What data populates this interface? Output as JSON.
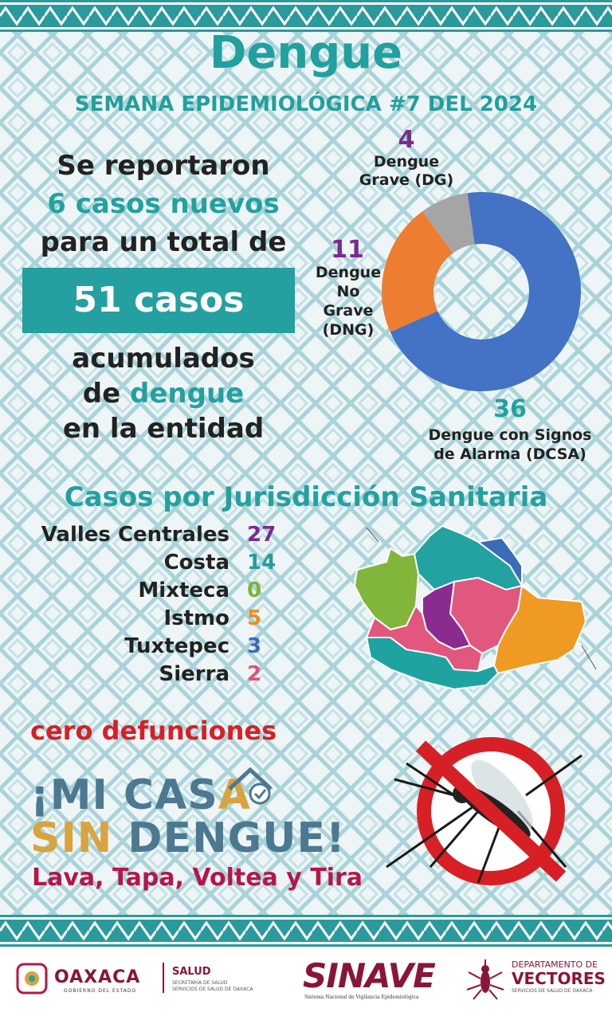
{
  "header": {
    "title": "Dengue",
    "subtitle": "SEMANA EPIDEMIOLÓGICA #7 DEL 2024"
  },
  "intro": {
    "line1": "Se reportaron",
    "line2": "6 casos nuevos",
    "line3": "para un total de",
    "total": "51 casos",
    "line4": "acumulados",
    "line5_a": "de ",
    "line5_b": "dengue",
    "line6": "en la entidad"
  },
  "donut": {
    "dg_value": "4",
    "dg_label_1": "Dengue",
    "dg_label_2": "Grave (DG)",
    "dng_value": "11",
    "dng_label_1": "Dengue",
    "dng_label_2": "No",
    "dng_label_3": "Grave",
    "dng_label_4": "(DNG)",
    "dcsa_value": "36",
    "dcsa_label_1": "Dengue con Signos",
    "dcsa_label_2": "de Alarma (DCSA)"
  },
  "chart_data": {
    "type": "pie",
    "categories": [
      "Dengue con Signos de Alarma (DCSA)",
      "Dengue No Grave (DNG)",
      "Dengue Grave (DG)"
    ],
    "values": [
      36,
      11,
      4
    ],
    "colors": [
      "#4472c4",
      "#ed7d31",
      "#a5a5a5"
    ]
  },
  "jurisdicciones": {
    "title": "Casos por Jurisdicción Sanitaria",
    "rows": [
      {
        "name": "Valles Centrales",
        "value": "27",
        "color": "#7b2a8c"
      },
      {
        "name": "Costa",
        "value": "14",
        "color": "#1f9e9c"
      },
      {
        "name": "Mixteca",
        "value": "0",
        "color": "#7ab530"
      },
      {
        "name": "Istmo",
        "value": "5",
        "color": "#e8901f"
      },
      {
        "name": "Tuxtepec",
        "value": "3",
        "color": "#3b6cb8"
      },
      {
        "name": "Sierra",
        "value": "2",
        "color": "#e0537a"
      }
    ]
  },
  "defunciones": "cero defunciones",
  "campaign": {
    "line1_a": "¡MI CAS",
    "line1_b": "A",
    "line2_a": "SIN ",
    "line2_b": "DENGUE!",
    "slogan": "Lava, Tapa, Voltea y Tira"
  },
  "footer": {
    "oaxaca": "OAXACA",
    "gobierno": "GOBIERNO DEL ESTADO",
    "salud": "SALUD",
    "salud_1": "SECRETARÍA DE SALUD",
    "salud_2": "SERVICIOS DE SALUD DE OAXACA",
    "sinave": "SINAVE",
    "sinave_sub": "Sistema Nacional de Vigilancia Epidemiológica",
    "depto_1": "DEPARTAMENTO DE",
    "depto_2": "VECTORES",
    "depto_3": "SERVICIOS DE SALUD DE OAXACA"
  },
  "colors": {
    "teal": "#22a1a0",
    "purple": "#7b2a8c",
    "red": "#d81f26",
    "slogan": "#b5164a",
    "campaign_blue": "#4d7891",
    "campaign_gold": "#d9a33f"
  }
}
